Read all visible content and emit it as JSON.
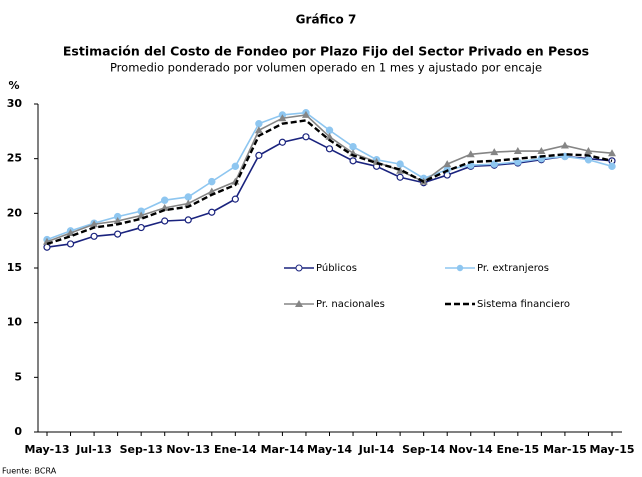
{
  "chart_data": {
    "type": "line",
    "chart_label": "Gráfico 7",
    "title": "Estimación del Costo de Fondeo por Plazo Fijo del Sector Privado en Pesos",
    "subtitle": "Promedio ponderado por volumen operado en 1 mes y ajustado por encaje",
    "y_label": "%",
    "source": "Fuente: BCRA",
    "categories": [
      "May-13",
      null,
      "Jul-13",
      null,
      "Sep-13",
      null,
      "Nov-13",
      null,
      "Ene-14",
      null,
      "Mar-14",
      null,
      "May-14",
      null,
      "Jul-14",
      null,
      "Sep-14",
      null,
      "Nov-14",
      null,
      "Ene-15",
      null,
      "Mar-15",
      null,
      "May-15"
    ],
    "ylim": [
      0,
      30
    ],
    "yticks": [
      0,
      5,
      10,
      15,
      20,
      25,
      30
    ],
    "grid": false,
    "series": [
      {
        "name": "Públicos",
        "color": "#1a237e",
        "marker": "circle-open",
        "dash": false,
        "values": [
          16.9,
          17.2,
          17.9,
          18.1,
          18.7,
          19.3,
          19.4,
          20.1,
          21.3,
          25.3,
          26.5,
          27.0,
          25.9,
          24.8,
          24.3,
          23.3,
          22.8,
          23.5,
          24.3,
          24.4,
          24.6,
          24.9,
          25.2,
          25.0,
          24.8
        ]
      },
      {
        "name": "Pr. extranjeros",
        "color": "#8ec6f0",
        "marker": "circle",
        "dash": false,
        "values": [
          17.6,
          18.4,
          19.1,
          19.7,
          20.2,
          21.2,
          21.5,
          22.9,
          24.3,
          28.2,
          29.0,
          29.2,
          27.6,
          26.1,
          24.9,
          24.5,
          23.2,
          24.0,
          24.4,
          24.5,
          24.7,
          25.0,
          25.2,
          24.9,
          24.3
        ]
      },
      {
        "name": "Pr. nacionales",
        "color": "#858585",
        "marker": "triangle",
        "dash": false,
        "values": [
          17.4,
          18.2,
          19.0,
          19.3,
          19.8,
          20.5,
          20.9,
          22.0,
          22.9,
          27.6,
          28.7,
          29.0,
          27.0,
          25.5,
          24.7,
          23.9,
          22.9,
          24.5,
          25.4,
          25.6,
          25.7,
          25.7,
          26.2,
          25.7,
          25.5
        ]
      },
      {
        "name": "Sistema financiero",
        "color": "#000000",
        "marker": "none",
        "dash": true,
        "values": [
          17.2,
          17.9,
          18.7,
          19.0,
          19.5,
          20.3,
          20.6,
          21.7,
          22.6,
          27.1,
          28.2,
          28.5,
          26.7,
          25.3,
          24.6,
          24.0,
          22.9,
          23.9,
          24.7,
          24.8,
          25.0,
          25.2,
          25.4,
          25.3,
          24.8
        ]
      }
    ]
  }
}
